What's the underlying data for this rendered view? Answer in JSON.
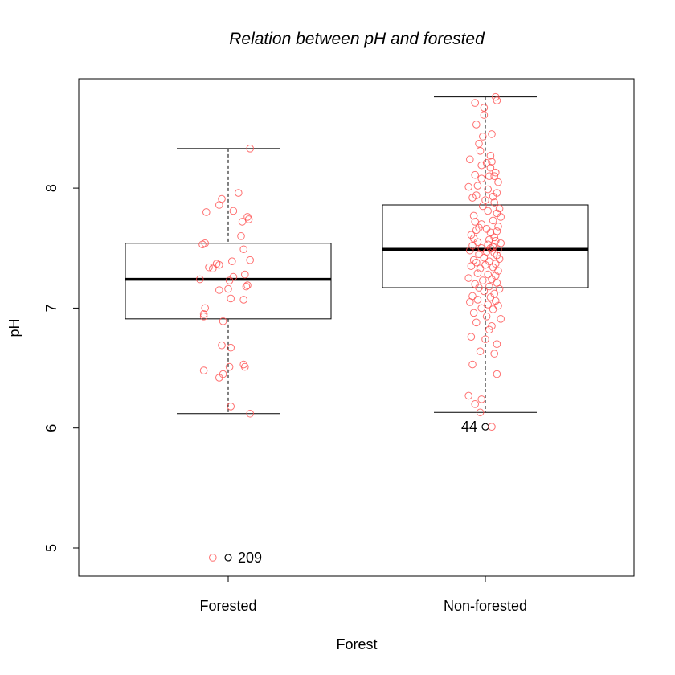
{
  "chart_data": {
    "type": "boxplot",
    "title": "Relation between pH and forested",
    "xlabel": "Forest",
    "ylabel": "pH",
    "categories": [
      "Forested",
      "Non-forested"
    ],
    "ylim": [
      4.85,
      8.8
    ],
    "yticks": [
      5,
      6,
      7,
      8
    ],
    "colors": {
      "points": "#ff4d4d",
      "box": "#000000",
      "outlier": "#000000"
    },
    "boxes": [
      {
        "category": "Forested",
        "lower_whisker": 6.12,
        "q1": 6.91,
        "median": 7.24,
        "q3": 7.54,
        "upper_whisker": 8.33,
        "outliers": [
          {
            "value": 4.92,
            "label": "209"
          }
        ]
      },
      {
        "category": "Non-forested",
        "lower_whisker": 6.13,
        "q1": 7.17,
        "median": 7.49,
        "q3": 7.86,
        "upper_whisker": 8.76,
        "outliers": [
          {
            "value": 6.01,
            "label": "44"
          }
        ]
      }
    ],
    "points": [
      {
        "category": "Forested",
        "values": [
          8.33,
          7.96,
          7.91,
          7.86,
          7.81,
          7.8,
          7.76,
          7.74,
          7.72,
          7.6,
          7.54,
          7.53,
          7.49,
          7.4,
          7.39,
          7.37,
          7.36,
          7.34,
          7.33,
          7.28,
          7.26,
          7.24,
          7.23,
          7.19,
          7.18,
          7.16,
          7.15,
          7.08,
          7.07,
          7.0,
          6.95,
          6.93,
          6.89,
          6.69,
          6.67,
          6.53,
          6.51,
          6.51,
          6.48,
          6.45,
          6.42,
          6.18,
          6.12,
          4.92
        ],
        "jitter": [
          0.17,
          0.08,
          -0.05,
          -0.07,
          0.04,
          -0.17,
          0.15,
          0.16,
          0.11,
          0.1,
          -0.18,
          -0.2,
          0.12,
          0.17,
          0.03,
          -0.09,
          -0.07,
          -0.15,
          -0.12,
          0.13,
          0.04,
          -0.22,
          0.01,
          0.15,
          0.14,
          0.0,
          -0.07,
          0.02,
          0.12,
          -0.18,
          -0.19,
          -0.19,
          -0.04,
          -0.05,
          0.02,
          0.12,
          0.13,
          0.01,
          -0.19,
          -0.04,
          -0.07,
          0.02,
          0.17,
          -0.12
        ]
      },
      {
        "category": "Non-forested",
        "values": [
          8.76,
          8.73,
          8.71,
          8.67,
          8.61,
          8.53,
          8.45,
          8.43,
          8.37,
          8.31,
          8.27,
          8.24,
          8.22,
          8.21,
          8.19,
          8.17,
          8.13,
          8.11,
          8.1,
          8.1,
          8.08,
          8.05,
          8.02,
          8.01,
          7.99,
          7.96,
          7.94,
          7.93,
          7.92,
          7.9,
          7.88,
          7.85,
          7.83,
          7.81,
          7.79,
          7.77,
          7.76,
          7.73,
          7.72,
          7.7,
          7.68,
          7.67,
          7.66,
          7.65,
          7.64,
          7.63,
          7.61,
          7.59,
          7.58,
          7.57,
          7.56,
          7.55,
          7.54,
          7.53,
          7.52,
          7.51,
          7.5,
          7.5,
          7.49,
          7.48,
          7.47,
          7.46,
          7.45,
          7.44,
          7.42,
          7.41,
          7.4,
          7.39,
          7.38,
          7.37,
          7.36,
          7.35,
          7.34,
          7.33,
          7.31,
          7.29,
          7.28,
          7.27,
          7.25,
          7.24,
          7.23,
          7.21,
          7.2,
          7.18,
          7.17,
          7.16,
          7.14,
          7.12,
          7.1,
          7.09,
          7.07,
          7.06,
          7.05,
          7.03,
          7.02,
          7.0,
          6.99,
          6.96,
          6.93,
          6.91,
          6.88,
          6.85,
          6.82,
          6.76,
          6.74,
          6.7,
          6.64,
          6.62,
          6.53,
          6.45,
          6.27,
          6.24,
          6.2,
          6.13,
          6.01
        ],
        "jitter": [
          0.08,
          0.09,
          -0.08,
          -0.01,
          -0.01,
          -0.07,
          0.05,
          -0.02,
          -0.05,
          -0.04,
          0.04,
          -0.12,
          0.05,
          0.01,
          -0.03,
          0.04,
          0.08,
          -0.08,
          0.03,
          0.07,
          -0.03,
          0.1,
          -0.06,
          -0.13,
          0.02,
          0.09,
          -0.07,
          0.06,
          -0.1,
          0.0,
          0.07,
          -0.02,
          0.11,
          0.02,
          0.09,
          -0.09,
          0.12,
          0.06,
          -0.08,
          -0.03,
          0.1,
          -0.05,
          0.01,
          -0.07,
          0.09,
          0.04,
          -0.11,
          0.07,
          -0.09,
          0.03,
          0.08,
          -0.06,
          0.12,
          0.02,
          -0.1,
          0.06,
          -0.03,
          0.04,
          0.1,
          -0.12,
          0.01,
          0.07,
          -0.05,
          0.09,
          -0.01,
          0.11,
          -0.09,
          0.03,
          -0.07,
          0.08,
          0.0,
          -0.11,
          0.06,
          -0.04,
          0.1,
          -0.06,
          0.02,
          0.08,
          -0.13,
          0.05,
          -0.02,
          0.09,
          -0.08,
          0.03,
          -0.05,
          0.11,
          -0.01,
          0.07,
          -0.1,
          0.04,
          -0.06,
          0.08,
          -0.12,
          0.02,
          0.1,
          -0.03,
          0.06,
          -0.09,
          0.01,
          0.12,
          -0.07,
          0.05,
          0.03,
          -0.11,
          0.0,
          0.09,
          -0.04,
          0.07,
          -0.1,
          0.09,
          -0.13,
          -0.03,
          -0.08,
          -0.04,
          0.05
        ]
      }
    ]
  }
}
